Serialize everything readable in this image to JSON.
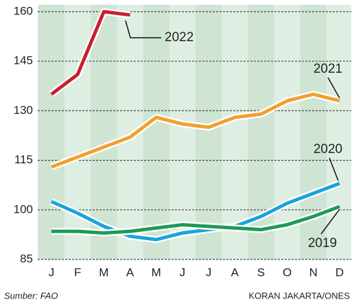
{
  "chart_data": {
    "type": "line",
    "categories": [
      "J",
      "F",
      "M",
      "A",
      "M",
      "J",
      "J",
      "A",
      "S",
      "O",
      "N",
      "D"
    ],
    "ylim": [
      85,
      160
    ],
    "yticks": [
      85,
      100,
      115,
      130,
      145,
      160
    ],
    "grid": true,
    "series": [
      {
        "name": "2022",
        "color": "#c8202f",
        "values": [
          135,
          141,
          160,
          159,
          null,
          null,
          null,
          null,
          null,
          null,
          null,
          null
        ]
      },
      {
        "name": "2021",
        "color": "#f0a030",
        "values": [
          113,
          116,
          119,
          122,
          128,
          126,
          125,
          128,
          129,
          133,
          135,
          133
        ]
      },
      {
        "name": "2020",
        "color": "#1aa3dc",
        "values": [
          102.5,
          99,
          95,
          92,
          91,
          93,
          94,
          95,
          98,
          102,
          105,
          108
        ]
      },
      {
        "name": "2019",
        "color": "#1e9a55",
        "values": [
          93.5,
          93.5,
          93,
          93.5,
          94.5,
          95.5,
          95,
          94.5,
          94,
          95.5,
          98,
          101
        ]
      }
    ],
    "source": "Sumber: FAO",
    "credit": "KORAN JAKARTA/ONES"
  }
}
